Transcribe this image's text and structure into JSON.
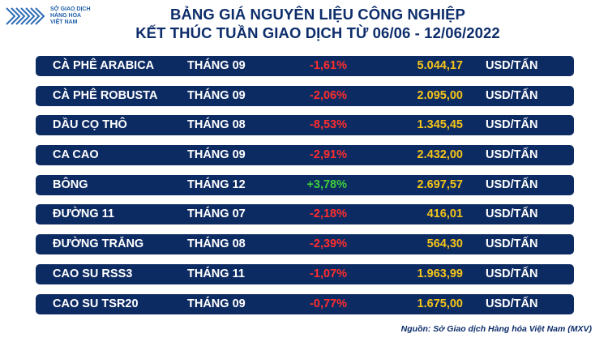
{
  "logo": {
    "line1": "SỞ GIAO DỊCH",
    "line2": "HÀNG HÓA",
    "line3": "VIỆT NAM"
  },
  "title": {
    "line1": "BẢNG GIÁ NGUYÊN LIỆU CÔNG NGHIỆP",
    "line2": "KẾT THÚC TUẦN GIAO DỊCH TỪ 06/06 - 12/06/2022"
  },
  "colors": {
    "row_bg": "#0d2b63",
    "negative": "#ff2d2d",
    "positive": "#3ccf3c",
    "price": "#f5c518",
    "title": "#0d2d6b"
  },
  "rows": [
    {
      "name": "CÀ PHÊ ARABICA",
      "month": "THÁNG 09",
      "change": "-1,61%",
      "direction": "neg",
      "price": "5.044,17",
      "unit": "USD/TẤN"
    },
    {
      "name": "CÀ PHÊ ROBUSTA",
      "month": "THÁNG 09",
      "change": "-2,06%",
      "direction": "neg",
      "price": "2.095,00",
      "unit": "USD/TẤN"
    },
    {
      "name": "DẦU CỌ THÔ",
      "month": "THÁNG 08",
      "change": "-8,53%",
      "direction": "neg",
      "price": "1.345,45",
      "unit": "USD/TẤN"
    },
    {
      "name": "CA CAO",
      "month": "THÁNG 09",
      "change": "-2,91%",
      "direction": "neg",
      "price": "2.432,00",
      "unit": "USD/TẤN"
    },
    {
      "name": "BÔNG",
      "month": "THÁNG 12",
      "change": "+3,78%",
      "direction": "pos",
      "price": "2.697,57",
      "unit": "USD/TẤN"
    },
    {
      "name": "ĐƯỜNG 11",
      "month": "THÁNG 07",
      "change": "-2,18%",
      "direction": "neg",
      "price": "416,01",
      "unit": "USD/TẤN"
    },
    {
      "name": "ĐƯỜNG TRẮNG",
      "month": "THÁNG 08",
      "change": "-2,39%",
      "direction": "neg",
      "price": "564,30",
      "unit": "USD/TẤN"
    },
    {
      "name": "CAO SU RSS3",
      "month": "THÁNG 11",
      "change": "-1,07%",
      "direction": "neg",
      "price": "1.963,99",
      "unit": "USD/TẤN"
    },
    {
      "name": "CAO SU TSR20",
      "month": "THÁNG 09",
      "change": "-0,77%",
      "direction": "neg",
      "price": "1.675,00",
      "unit": "USD/TẤN"
    }
  ],
  "source": "Nguồn: Sở Giao dịch Hàng hóa Việt Nam (MXV)"
}
